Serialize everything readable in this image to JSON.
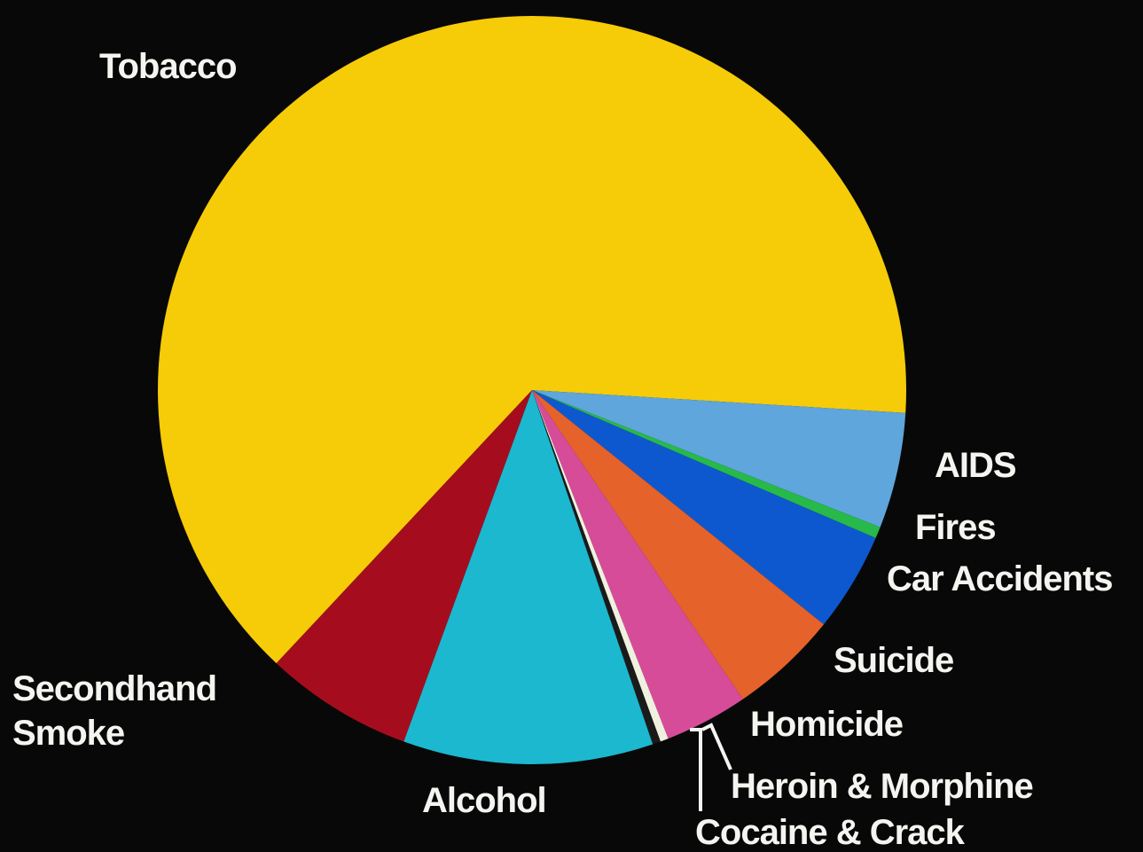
{
  "chart_data": {
    "type": "pie",
    "title": "",
    "slices": [
      {
        "label": "Tobacco",
        "value": 64.0,
        "color": "#f6cb08"
      },
      {
        "label": "AIDS",
        "value": 5.0,
        "color": "#5ea6dc"
      },
      {
        "label": "Fires",
        "value": 0.5,
        "color": "#27b94a"
      },
      {
        "label": "Car Accidents",
        "value": 4.3,
        "color": "#0e58cf"
      },
      {
        "label": "Suicide",
        "value": 4.7,
        "color": "#e5622a"
      },
      {
        "label": "Homicide",
        "value": 3.6,
        "color": "#d64c99"
      },
      {
        "label": "Heroin & Morphine",
        "value": 0.35,
        "color": "#f0f0e0"
      },
      {
        "label": "Cocaine & Crack",
        "value": 0.35,
        "color": "#1a1a1a"
      },
      {
        "label": "Alcohol",
        "value": 10.8,
        "color": "#1bb8cf"
      },
      {
        "label": "Secondhand Smoke",
        "value": 6.4,
        "color": "#a50d1e"
      }
    ],
    "labels": {
      "tobacco": "Tobacco",
      "aids": "AIDS",
      "fires": "Fires",
      "car_accidents": "Car Accidents",
      "suicide": "Suicide",
      "homicide": "Homicide",
      "heroin_morphine": "Heroin & Morphine",
      "cocaine_crack": "Cocaine & Crack",
      "alcohol": "Alcohol",
      "secondhand_line1": "Secondhand",
      "secondhand_line2": "Smoke"
    }
  }
}
